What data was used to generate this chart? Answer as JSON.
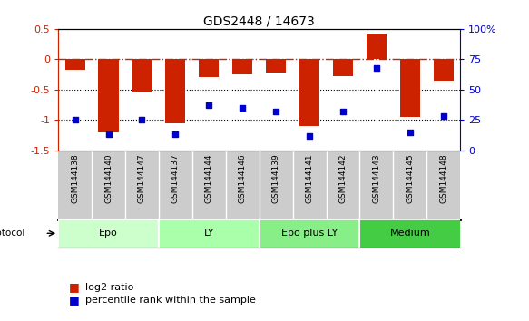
{
  "title": "GDS2448 / 14673",
  "samples": [
    "GSM144138",
    "GSM144140",
    "GSM144147",
    "GSM144137",
    "GSM144144",
    "GSM144146",
    "GSM144139",
    "GSM144141",
    "GSM144142",
    "GSM144143",
    "GSM144145",
    "GSM144148"
  ],
  "log2_ratio": [
    -0.18,
    -1.2,
    -0.55,
    -1.05,
    -0.3,
    -0.25,
    -0.22,
    -1.1,
    -0.28,
    0.43,
    -0.95,
    -0.35
  ],
  "percentile_rank": [
    25,
    13,
    25,
    13,
    37,
    35,
    32,
    12,
    32,
    68,
    15,
    28
  ],
  "groups": [
    {
      "label": "Epo",
      "start": 0,
      "end": 3,
      "color": "#ccffcc"
    },
    {
      "label": "LY",
      "start": 3,
      "end": 6,
      "color": "#aaffaa"
    },
    {
      "label": "Epo plus LY",
      "start": 6,
      "end": 9,
      "color": "#88ee88"
    },
    {
      "label": "Medium",
      "start": 9,
      "end": 12,
      "color": "#44cc44"
    }
  ],
  "bar_color": "#cc2200",
  "dot_color": "#0000cc",
  "ylim_left": [
    -1.5,
    0.5
  ],
  "ylim_right": [
    0,
    100
  ],
  "yticks_left": [
    -1.5,
    -1.0,
    -0.5,
    0.0,
    0.5
  ],
  "yticks_right": [
    0,
    25,
    50,
    75,
    100
  ],
  "hline_y": 0,
  "dotted_lines": [
    -0.5,
    -1.0
  ],
  "bar_width": 0.6,
  "sample_label_bg": "#cccccc",
  "group_colors": [
    "#ccffcc",
    "#aaffaa",
    "#88ee88",
    "#44cc44"
  ]
}
